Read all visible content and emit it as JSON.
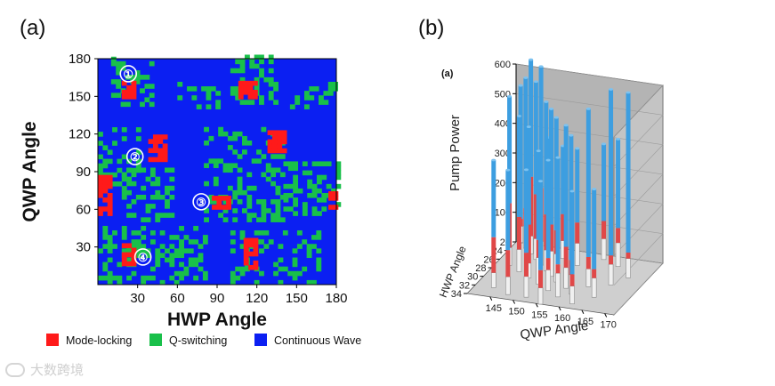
{
  "watermark": "大数跨境",
  "panels": {
    "left": "(a)",
    "right": "(b)"
  },
  "legend": [
    {
      "label": "Mode-locking",
      "color": "#ff1a1a"
    },
    {
      "label": "Q-switching",
      "color": "#19c04a"
    },
    {
      "label": "Continuous Wave",
      "color": "#0b1ff2"
    }
  ],
  "colors": {
    "cw": "#0b1ff2",
    "q": "#19c04a",
    "ml": "#ff1a1a",
    "pane": "#b4b4b4",
    "bar_top": "#3d9ee0",
    "bar_mid": "#e04848",
    "bar_bottom": "#f0f0f0"
  },
  "chart_data": [
    {
      "type": "heatmap",
      "xlabel": "HWP Angle",
      "ylabel": "QWP Angle",
      "xlim": [
        0,
        180
      ],
      "ylim": [
        0,
        180
      ],
      "xticks": [
        "30",
        "60",
        "90",
        "120",
        "150",
        "180"
      ],
      "yticks": [
        "30",
        "60",
        "90",
        "120",
        "150",
        "180"
      ],
      "background_state": "Continuous Wave",
      "markers": [
        {
          "label": "①",
          "x": 23,
          "y": 168
        },
        {
          "label": "②",
          "x": 28,
          "y": 102
        },
        {
          "label": "③",
          "x": 78,
          "y": 66
        },
        {
          "label": "④",
          "x": 34,
          "y": 22
        }
      ],
      "mode_locking_regions": [
        {
          "x0": 18,
          "x1": 26,
          "y0": 148,
          "y1": 160
        },
        {
          "x0": 38,
          "x1": 50,
          "y0": 98,
          "y1": 118
        },
        {
          "x0": 86,
          "x1": 98,
          "y0": 60,
          "y1": 69
        },
        {
          "x0": 18,
          "x1": 28,
          "y0": 15,
          "y1": 30
        },
        {
          "x0": 106,
          "x1": 117,
          "y0": 148,
          "y1": 162
        },
        {
          "x0": 128,
          "x1": 142,
          "y0": 105,
          "y1": 120
        },
        {
          "x0": 110,
          "x1": 120,
          "y0": 12,
          "y1": 35
        },
        {
          "x0": 0,
          "x1": 8,
          "y0": 55,
          "y1": 86
        },
        {
          "x0": 174,
          "x1": 180,
          "y0": 60,
          "y1": 72
        }
      ],
      "q_switching_regions": [
        {
          "x0": 10,
          "x1": 40,
          "y0": 142,
          "y1": 180
        },
        {
          "x0": 0,
          "x1": 32,
          "y0": 75,
          "y1": 125
        },
        {
          "x0": 18,
          "x1": 55,
          "y0": 50,
          "y1": 92
        },
        {
          "x0": 60,
          "x1": 90,
          "y0": 140,
          "y1": 160
        },
        {
          "x0": 100,
          "x1": 135,
          "y0": 140,
          "y1": 180
        },
        {
          "x0": 145,
          "x1": 180,
          "y0": 140,
          "y1": 160
        },
        {
          "x0": 80,
          "x1": 140,
          "y0": 50,
          "y1": 125
        },
        {
          "x0": 140,
          "x1": 180,
          "y0": 55,
          "y1": 95
        },
        {
          "x0": 0,
          "x1": 80,
          "y0": 0,
          "y1": 45
        },
        {
          "x0": 100,
          "x1": 165,
          "y0": 0,
          "y1": 40
        }
      ]
    },
    {
      "type": "bar3d",
      "panel_tag": "(a)",
      "xlabel": "QWP Angle",
      "ylabel": "HWP Angle",
      "zlabel": "Pump Power",
      "xlim": [
        140,
        172
      ],
      "ylim": [
        22,
        34
      ],
      "zlim": [
        0,
        600
      ],
      "xticks": [
        "145",
        "150",
        "155",
        "160",
        "165",
        "170"
      ],
      "yticks": [
        "22",
        "24",
        "26",
        "28",
        "30",
        "32",
        "34"
      ],
      "zticks": [
        "0",
        "100",
        "200",
        "300",
        "400",
        "500",
        "600"
      ],
      "segments": [
        "Continuous Wave (bottom)",
        "Mode-locking (middle)",
        "Q-switching (top)"
      ],
      "bars": [
        {
          "qwp": 141,
          "hwp": 22,
          "bottom": 55,
          "ml": 25,
          "top": 450
        },
        {
          "qwp": 143,
          "hwp": 23,
          "bottom": 75,
          "ml": 60,
          "top": 440
        },
        {
          "qwp": 145,
          "hwp": 24,
          "bottom": 60,
          "ml": 200,
          "top": 395
        },
        {
          "qwp": 147,
          "hwp": 25,
          "bottom": 70,
          "ml": 150,
          "top": 380
        },
        {
          "qwp": 149,
          "hwp": 26,
          "bottom": 80,
          "ml": 180,
          "top": 410
        },
        {
          "qwp": 151,
          "hwp": 27,
          "bottom": 70,
          "ml": 120,
          "top": 380
        },
        {
          "qwp": 153,
          "hwp": 28,
          "bottom": 85,
          "ml": 90,
          "top": 390
        },
        {
          "qwp": 155,
          "hwp": 29,
          "bottom": 95,
          "ml": 80,
          "top": 380
        },
        {
          "qwp": 158,
          "hwp": 30,
          "bottom": 70,
          "ml": 70,
          "top": 410
        },
        {
          "qwp": 160,
          "hwp": 31,
          "bottom": 65,
          "ml": 50,
          "top": 420
        },
        {
          "qwp": 143,
          "hwp": 27,
          "bottom": 60,
          "ml": 150,
          "top": 360
        },
        {
          "qwp": 146,
          "hwp": 28,
          "bottom": 75,
          "ml": 110,
          "top": 340
        },
        {
          "qwp": 149,
          "hwp": 29,
          "bottom": 50,
          "ml": 130,
          "top": 330
        },
        {
          "qwp": 152,
          "hwp": 30,
          "bottom": 90,
          "ml": 60,
          "top": 300
        },
        {
          "qwp": 155,
          "hwp": 31,
          "bottom": 70,
          "ml": 40,
          "top": 330
        },
        {
          "qwp": 158,
          "hwp": 32,
          "bottom": 80,
          "ml": 30,
          "top": 360
        },
        {
          "qwp": 162,
          "hwp": 29,
          "bottom": 60,
          "ml": 40,
          "top": 500
        },
        {
          "qwp": 166,
          "hwp": 28,
          "bottom": 70,
          "ml": 30,
          "top": 560
        },
        {
          "qwp": 168,
          "hwp": 26,
          "bottom": 65,
          "ml": 20,
          "top": 540
        },
        {
          "qwp": 164,
          "hwp": 24,
          "bottom": 80,
          "ml": 50,
          "top": 300
        },
        {
          "qwp": 160,
          "hwp": 23,
          "bottom": 70,
          "ml": 60,
          "top": 260
        },
        {
          "qwp": 156,
          "hwp": 25,
          "bottom": 75,
          "ml": 70,
          "top": 250
        },
        {
          "qwp": 152,
          "hwp": 24,
          "bottom": 60,
          "ml": 90,
          "top": 230
        },
        {
          "qwp": 148,
          "hwp": 23,
          "bottom": 65,
          "ml": 100,
          "top": 220
        },
        {
          "qwp": 144,
          "hwp": 32,
          "bottom": 50,
          "ml": 120,
          "top": 260
        },
        {
          "qwp": 148,
          "hwp": 33,
          "bottom": 60,
          "ml": 90,
          "top": 270
        },
        {
          "qwp": 152,
          "hwp": 33,
          "bottom": 70,
          "ml": 80,
          "top": 280
        },
        {
          "qwp": 156,
          "hwp": 34,
          "bottom": 55,
          "ml": 60,
          "top": 300
        },
        {
          "qwp": 162,
          "hwp": 33,
          "bottom": 60,
          "ml": 40,
          "top": 280
        },
        {
          "qwp": 165,
          "hwp": 31,
          "bottom": 65,
          "ml": 30,
          "top": 270
        }
      ]
    }
  ]
}
